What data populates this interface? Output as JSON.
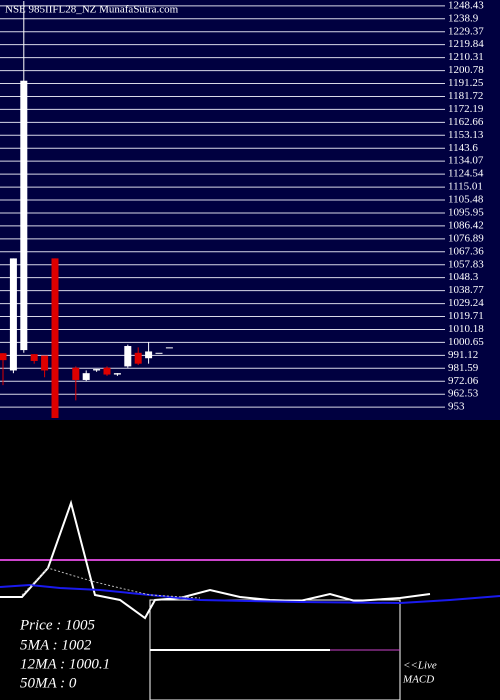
{
  "chart_data": [
    {
      "type": "candlestick",
      "title": "NSE 985IIFL28_NZ MunafaSutra.com",
      "categories": [
        null,
        null,
        null,
        null,
        null,
        null,
        null,
        null,
        null,
        null,
        null,
        null,
        null,
        null,
        null,
        null,
        null
      ],
      "open": [
        992.7,
        980,
        995,
        992,
        991,
        1062.5,
        null,
        982,
        973,
        980,
        982,
        977,
        983,
        993,
        989,
        993,
        997
      ],
      "high": [
        992.7,
        1062.5,
        1252,
        992,
        991,
        1062.5,
        null,
        983,
        980,
        981,
        983,
        978,
        999,
        997,
        1001,
        993,
        997
      ],
      "low": [
        969.2,
        978,
        993,
        985,
        975,
        945,
        null,
        958,
        972,
        979,
        976,
        976,
        982,
        984,
        985,
        993,
        997
      ],
      "close": [
        987.6,
        1062.5,
        1193.3,
        987,
        980,
        945,
        null,
        973,
        978,
        981,
        977,
        978,
        998,
        985,
        994,
        993,
        997
      ],
      "up_color": "#ffffff",
      "down_color": "#dd0000",
      "ylim": [
        945,
        1252
      ],
      "yticks": [
        1248.43,
        1238.9,
        1229.37,
        1219.84,
        1210.31,
        1200.78,
        1191.25,
        1181.72,
        1172.19,
        1162.66,
        1153.13,
        1143.6,
        1134.07,
        1124.54,
        1115.01,
        1105.48,
        1095.95,
        1086.42,
        1076.89,
        1067.36,
        1057.83,
        1048.3,
        1038.77,
        1029.24,
        1019.71,
        1010.18,
        1000.65,
        991.12,
        981.59,
        972.06,
        962.53,
        953
      ],
      "grid": true
    },
    {
      "type": "line",
      "xlim": [
        0,
        500
      ],
      "ylim": [
        -100,
        180
      ],
      "level": 40,
      "level_color": "#cc44cc",
      "series": [
        {
          "color": "#ffffff",
          "x": [
            0,
            22,
            48,
            71,
            95,
            120,
            145,
            155,
            180,
            210,
            240,
            270,
            300,
            330,
            355,
            400,
            430
          ],
          "values": [
            3,
            3,
            32,
            97,
            5,
            0,
            -18,
            0,
            2,
            10,
            3,
            0,
            -1,
            6,
            -1,
            2,
            6
          ]
        },
        {
          "color": "#1a1aee",
          "x": [
            0,
            30,
            60,
            100,
            150,
            200,
            300,
            400,
            450,
            500
          ],
          "values": [
            13,
            15,
            12,
            10,
            5,
            0,
            -2,
            -3,
            0,
            4
          ]
        },
        {
          "color": "#bbbbbb",
          "dashed": true,
          "x": [
            22,
            48,
            71,
            95,
            120,
            150,
            200
          ],
          "values": [
            5,
            32,
            25,
            18,
            12,
            5,
            2
          ]
        }
      ],
      "info": [
        "Price : 1005",
        "5MA : 1002",
        "12MA : 1000.1",
        "50MA : 0"
      ],
      "live": [
        "<<Live",
        "MACD"
      ]
    }
  ]
}
